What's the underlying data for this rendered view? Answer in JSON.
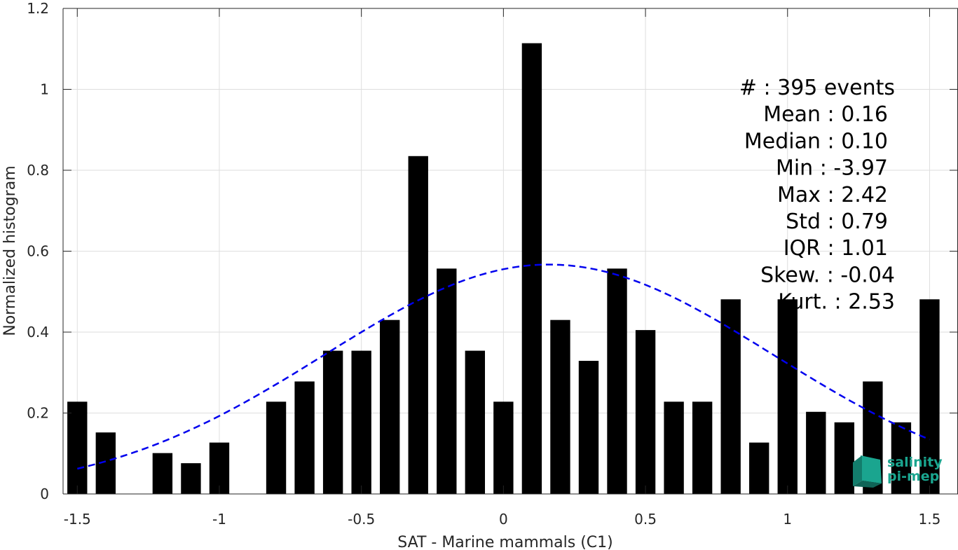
{
  "chart_data": {
    "type": "bar",
    "xlabel": "SAT - Marine mammals (C1)",
    "ylabel": "Normalized histogram",
    "xlim": [
      -1.55,
      1.6
    ],
    "ylim": [
      0,
      1.2
    ],
    "x_ticks": [
      -1.5,
      -1,
      -0.5,
      0,
      0.5,
      1,
      1.5
    ],
    "x_tick_labels": [
      "-1.5",
      "-1",
      "-0.5",
      "0",
      "0.5",
      "1",
      "1.5"
    ],
    "y_ticks": [
      0,
      0.2,
      0.4,
      0.6,
      0.8,
      1,
      1.2
    ],
    "y_tick_labels": [
      "0",
      "0.2",
      "0.4",
      "0.6",
      "0.8",
      "1",
      "1.2"
    ],
    "grid": true,
    "bar_width": 0.07,
    "bar_color": "#000000",
    "bins": [
      -1.5,
      -1.4,
      -1.3,
      -1.2,
      -1.1,
      -1.0,
      -0.9,
      -0.8,
      -0.7,
      -0.6,
      -0.5,
      -0.4,
      -0.3,
      -0.2,
      -0.1,
      0.0,
      0.1,
      0.2,
      0.3,
      0.4,
      0.5,
      0.6,
      0.7,
      0.8,
      0.9,
      1.0,
      1.1,
      1.2,
      1.3,
      1.4,
      1.5
    ],
    "values": [
      0.228,
      0.152,
      0,
      0.101,
      0.076,
      0.127,
      0,
      0.228,
      0.278,
      0.354,
      0.354,
      0.43,
      0.835,
      0.557,
      0.354,
      0.228,
      1.114,
      0.43,
      0.329,
      0.557,
      0.405,
      0.228,
      0.228,
      0.481,
      0.127,
      0.481,
      0.203,
      0.177,
      0.278,
      0.177,
      0.481
    ],
    "fit_curve": {
      "type": "normal",
      "mean": 0.16,
      "std": 0.79,
      "peak": 0.567,
      "x_range": [
        -1.5,
        1.5
      ],
      "color": "#0000ee",
      "style": "dashed"
    },
    "stats": [
      "#  : 395 events",
      "Mean : 0.16",
      "Median : 0.10",
      "Min : -3.97",
      "Max : 2.42",
      "Std : 0.79",
      "IQR : 1.01",
      "Skew. : -0.04",
      "Kurt. : 2.53"
    ]
  },
  "logo": {
    "line1": "salinity",
    "line2": "pi-mep",
    "color": "#1aa58f"
  }
}
